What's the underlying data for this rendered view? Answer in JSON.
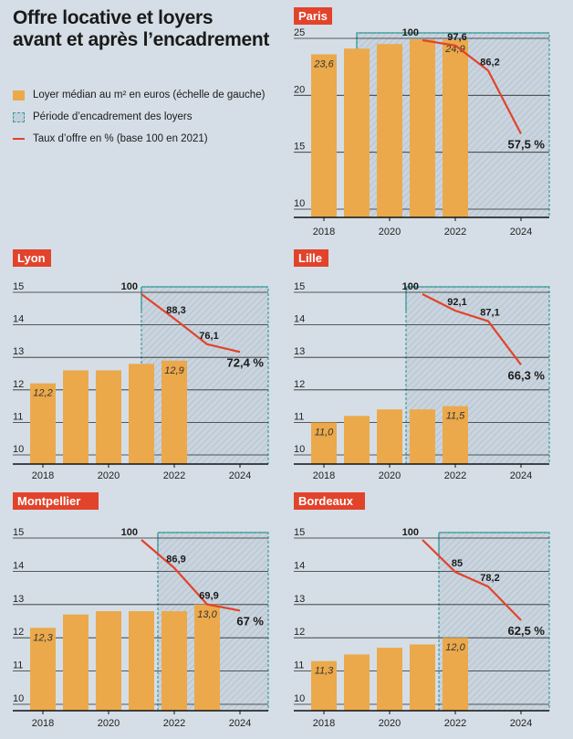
{
  "title": {
    "line1": "Offre locative et loyers",
    "line2": "avant et après l’encadrement"
  },
  "legend": {
    "rent": "Loyer médian au m² en euros (échelle de gauche)",
    "period": "Période d’encadrement des loyers",
    "offer": "Taux d’offre en % (base 100 en 2021)"
  },
  "colors": {
    "background": "#d5dee6",
    "bar": "#eba94b",
    "line": "#e2432b",
    "hatch_border": "#3a9b9b",
    "badge": "#e2432b"
  },
  "chart_data": [
    {
      "type": "bar",
      "city": "Paris",
      "years": [
        2018,
        2019,
        2020,
        2021,
        2022
      ],
      "rent": [
        23.6,
        24.1,
        24.5,
        24.9,
        24.9
      ],
      "rent_labels": [
        {
          "year": 2018,
          "text": "23,6"
        },
        {
          "year": 2022,
          "text": "24,9"
        }
      ],
      "ylim": [
        10,
        25
      ],
      "yticks": [
        10,
        15,
        20,
        25
      ],
      "xticks": [
        "2018",
        "2020",
        "2022",
        "2024"
      ],
      "regulation_start": 2019,
      "offer_years": [
        2021,
        2022,
        2023,
        2024
      ],
      "offer_values": [
        100,
        97.6,
        86.2,
        57.5
      ],
      "offer_labels": [
        "100",
        "97,6",
        "86,2",
        "57,5 %"
      ]
    },
    {
      "type": "bar",
      "city": "Lyon",
      "years": [
        2018,
        2019,
        2020,
        2021,
        2022
      ],
      "rent": [
        12.2,
        12.6,
        12.6,
        12.8,
        12.9
      ],
      "rent_labels": [
        {
          "year": 2018,
          "text": "12,2"
        },
        {
          "year": 2022,
          "text": "12,9"
        }
      ],
      "ylim": [
        10,
        15
      ],
      "yticks": [
        10,
        11,
        12,
        13,
        14,
        15
      ],
      "xticks": [
        "2018",
        "2020",
        "2022",
        "2024"
      ],
      "regulation_start": 2021,
      "offer_years": [
        2021,
        2022,
        2023,
        2024
      ],
      "offer_values": [
        100,
        88.3,
        76.1,
        72.4
      ],
      "offer_labels": [
        "100",
        "88,3",
        "76,1",
        "72,4 %"
      ]
    },
    {
      "type": "bar",
      "city": "Lille",
      "years": [
        2018,
        2019,
        2020,
        2021,
        2022
      ],
      "rent": [
        11.0,
        11.2,
        11.4,
        11.4,
        11.5
      ],
      "rent_labels": [
        {
          "year": 2018,
          "text": "11,0"
        },
        {
          "year": 2022,
          "text": "11,5"
        }
      ],
      "ylim": [
        10,
        15
      ],
      "yticks": [
        10,
        11,
        12,
        13,
        14,
        15
      ],
      "xticks": [
        "2018",
        "2020",
        "2022",
        "2024"
      ],
      "regulation_start": 2020.5,
      "offer_years": [
        2021,
        2022,
        2023,
        2024
      ],
      "offer_values": [
        100,
        92.1,
        87.1,
        66.3
      ],
      "offer_labels": [
        "100",
        "92,1",
        "87,1",
        "66,3 %"
      ]
    },
    {
      "type": "bar",
      "city": "Montpellier",
      "years": [
        2018,
        2019,
        2020,
        2021,
        2022,
        2023
      ],
      "rent": [
        12.3,
        12.7,
        12.8,
        12.8,
        12.8,
        13.0
      ],
      "rent_labels": [
        {
          "year": 2018,
          "text": "12,3"
        },
        {
          "year": 2023,
          "text": "13,0"
        }
      ],
      "ylim": [
        10,
        15
      ],
      "yticks": [
        10,
        11,
        12,
        13,
        14,
        15
      ],
      "xticks": [
        "2018",
        "2020",
        "2022",
        "2024"
      ],
      "regulation_start": 2021.5,
      "offer_years": [
        2021,
        2022,
        2023,
        2024
      ],
      "offer_values": [
        100,
        86.9,
        69.9,
        67
      ],
      "offer_labels": [
        "100",
        "86,9",
        "69,9",
        "67 %"
      ]
    },
    {
      "type": "bar",
      "city": "Bordeaux",
      "years": [
        2018,
        2019,
        2020,
        2021,
        2022
      ],
      "rent": [
        11.3,
        11.5,
        11.7,
        11.8,
        12.0
      ],
      "rent_labels": [
        {
          "year": 2018,
          "text": "11,3"
        },
        {
          "year": 2022,
          "text": "12,0"
        }
      ],
      "ylim": [
        10,
        15
      ],
      "yticks": [
        10,
        11,
        12,
        13,
        14,
        15
      ],
      "xticks": [
        "2018",
        "2020",
        "2022",
        "2024"
      ],
      "regulation_start": 2021.5,
      "offer_years": [
        2021,
        2022,
        2023,
        2024
      ],
      "offer_values": [
        100,
        85,
        78.2,
        62.5
      ],
      "offer_labels": [
        "100",
        "85",
        "78,2",
        "62,5 %"
      ]
    }
  ]
}
